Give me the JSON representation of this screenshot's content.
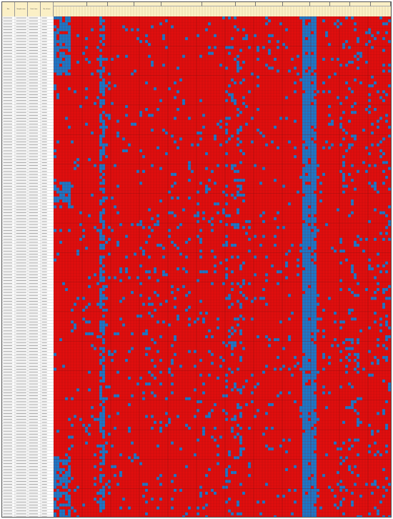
{
  "sheet": {
    "row_headers": [
      "Site",
      "Sample name",
      "Date / time",
      "No. of taxa"
    ],
    "group_headers": [
      "",
      "",
      "",
      "",
      "",
      "",
      "",
      "",
      "",
      "",
      "",
      "",
      ""
    ],
    "grid": {
      "rows": 170,
      "cols": 118
    },
    "colors": {
      "absent": "#e00e0e",
      "present": "#1e78c8",
      "header": "#fbf0c6",
      "grid_line": "#7a1010",
      "label_bg": "#ffffff",
      "label_line": "#b5b5b5"
    },
    "legend": {
      "absent": "",
      "present": ""
    }
  }
}
